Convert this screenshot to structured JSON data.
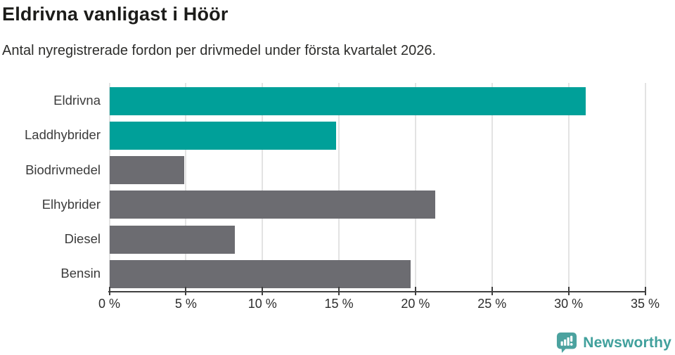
{
  "header": {
    "title": "Eldrivna vanligast i Höör",
    "subtitle": "Antal nyregistrerade fordon per drivmedel under första kvartalet 2026."
  },
  "chart_data": {
    "type": "bar",
    "orientation": "horizontal",
    "title": "Eldrivna vanligast i Höör",
    "subtitle": "Antal nyregistrerade fordon per drivmedel under första kvartalet 2026.",
    "categories": [
      "Eldrivna",
      "Laddhybrider",
      "Biodrivmedel",
      "Elhybrider",
      "Diesel",
      "Bensin"
    ],
    "values": [
      31.1,
      14.8,
      4.9,
      21.3,
      8.2,
      19.7
    ],
    "unit": "%",
    "xlim": [
      0,
      35
    ],
    "xticks": [
      0,
      5,
      10,
      15,
      20,
      25,
      30,
      35
    ],
    "xtick_labels": [
      "0 %",
      "5 %",
      "10 %",
      "15 %",
      "20 %",
      "25 %",
      "30 %",
      "35 %"
    ],
    "xlabel": "",
    "ylabel": "",
    "grid": true,
    "legend": "none",
    "bar_colors": {
      "highlight": "#00a099",
      "default": "#6c6c71"
    },
    "highlighted_categories": [
      "Eldrivna",
      "Laddhybrider"
    ]
  },
  "style": {
    "gridline_color": "#e3e3e3",
    "axis_color": "#404040",
    "title_color": "#1c1c1a",
    "text_color": "#2d2d2d",
    "label_color": "#3b3b3b"
  },
  "footer": {
    "brand": "Newsworthy",
    "logo_icon": "newsworthy-logo-icon",
    "brand_color": "#40a09c",
    "logo_color": "#4ba29f"
  }
}
